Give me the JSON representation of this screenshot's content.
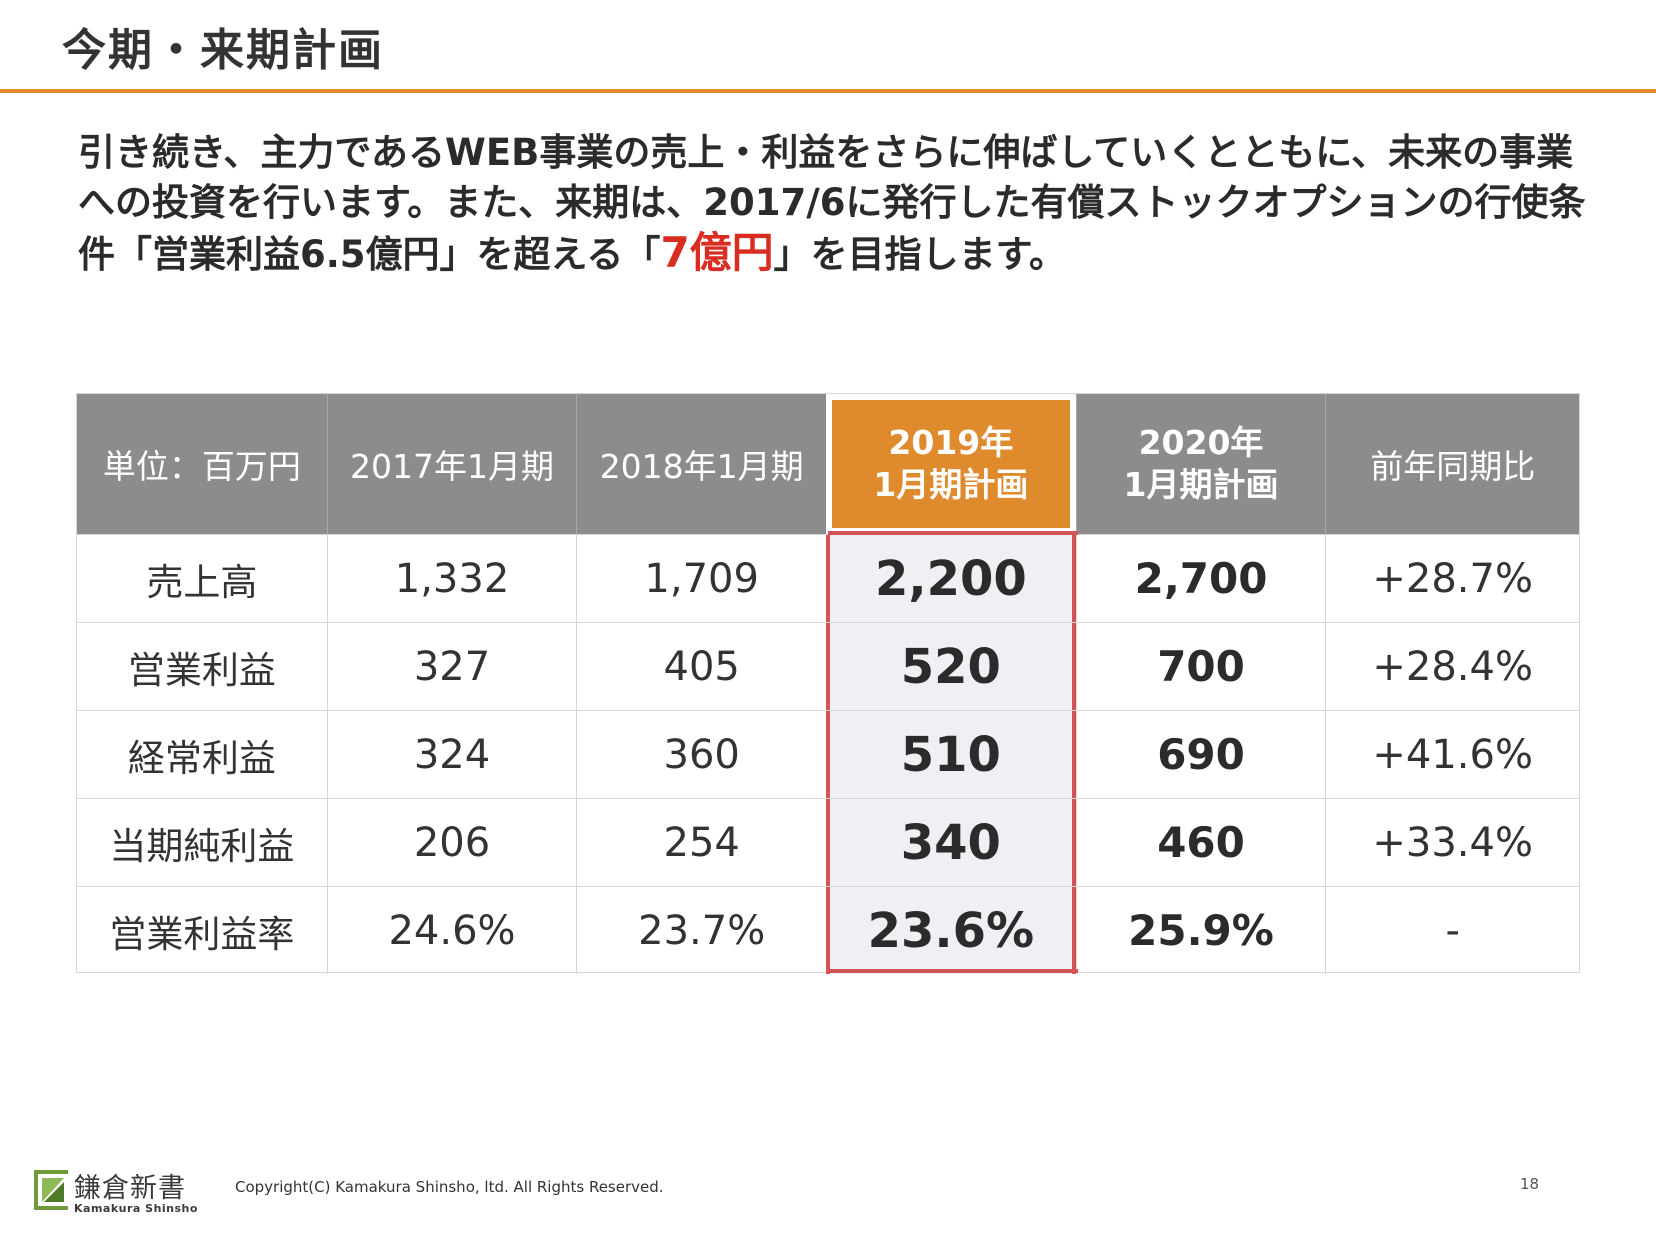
{
  "slide": {
    "title": "今期・来期計画",
    "lead_before": "引き続き、主力であるWEB事業の売上・利益をさらに伸ばしていくとともに、未来の事業への投資を行います。また、来期は、2017/6に発行した有償ストックオプションの行使条件「営業利益6.5億円」を超える「",
    "lead_highlight": "7億円",
    "lead_after": "」を目指します。",
    "highlight_color": "#d92d22",
    "accent_color": "#e08a2e"
  },
  "table": {
    "headers": {
      "unit": "単位：百万円",
      "fy2017": "2017年1月期",
      "fy2018": "2018年1月期",
      "fy2019_line1": "2019年",
      "fy2019_line2": "1月期計画",
      "fy2020_line1": "2020年",
      "fy2020_line2": "1月期計画",
      "yoy": "前年同期比"
    },
    "rows": [
      {
        "label": "売上高",
        "fy2017": "1,332",
        "fy2018": "1,709",
        "fy2019": "2,200",
        "fy2020": "2,700",
        "yoy": "+28.7%"
      },
      {
        "label": "営業利益",
        "fy2017": "327",
        "fy2018": "405",
        "fy2019": "520",
        "fy2020": "700",
        "yoy": "+28.4%"
      },
      {
        "label": "経常利益",
        "fy2017": "324",
        "fy2018": "360",
        "fy2019": "510",
        "fy2020": "690",
        "yoy": "+41.6%"
      },
      {
        "label": "当期純利益",
        "fy2017": "206",
        "fy2018": "254",
        "fy2019": "340",
        "fy2020": "460",
        "yoy": "+33.4%"
      },
      {
        "label": "営業利益率",
        "fy2017": "24.6%",
        "fy2018": "23.7%",
        "fy2019": "23.6%",
        "fy2020": "25.9%",
        "yoy": "-"
      }
    ]
  },
  "footer": {
    "logo_jp": "鎌倉新書",
    "logo_en": "Kamakura Shinsho",
    "logo_color": "#6e9a3c",
    "copyright": "Copyright(C) Kamakura Shinsho, ltd. All Rights Reserved.",
    "page_number": "18"
  }
}
